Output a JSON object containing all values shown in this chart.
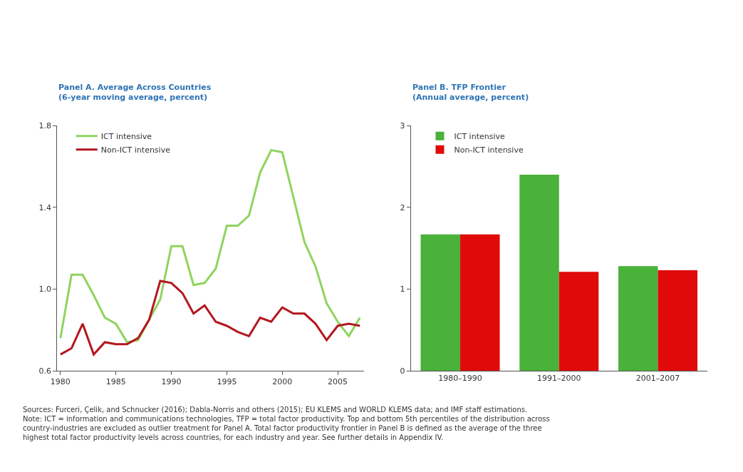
{
  "chart_data": [
    {
      "type": "line",
      "title": "Panel A. Average Across Countries",
      "subtitle": "(6-year moving average, percent)",
      "x": [
        1980,
        1981,
        1982,
        1983,
        1984,
        1985,
        1986,
        1987,
        1988,
        1989,
        1990,
        1991,
        1992,
        1993,
        1994,
        1995,
        1996,
        1997,
        1998,
        1999,
        2000,
        2001,
        2002,
        2003,
        2004,
        2005,
        2006,
        2007
      ],
      "series": [
        {
          "name": "ICT intensive",
          "color": "#8fd45e",
          "values": [
            0.76,
            1.07,
            1.07,
            0.97,
            0.86,
            0.83,
            0.74,
            0.75,
            0.85,
            0.95,
            1.21,
            1.21,
            1.02,
            1.03,
            1.1,
            1.31,
            1.31,
            1.36,
            1.57,
            1.68,
            1.67,
            1.45,
            1.23,
            1.11,
            0.93,
            0.84,
            0.77,
            0.86
          ]
        },
        {
          "name": "Non-ICT intensive",
          "color": "#b3171f",
          "values": [
            0.68,
            0.71,
            0.83,
            0.68,
            0.74,
            0.73,
            0.73,
            0.76,
            0.85,
            1.04,
            1.03,
            0.98,
            0.88,
            0.92,
            0.84,
            0.82,
            0.79,
            0.77,
            0.86,
            0.84,
            0.91,
            0.88,
            0.88,
            0.83,
            0.75,
            0.82,
            0.83,
            0.82
          ]
        }
      ],
      "xlim": [
        1979.7,
        2007.4
      ],
      "xticks": [
        1980,
        1985,
        1990,
        1995,
        2000,
        2005
      ],
      "ylim": [
        0.6,
        1.8
      ],
      "yticks": [
        0.6,
        {
          "value": 1.0,
          "label": "1.0"
        },
        1.4,
        1.8
      ],
      "legend": "top left",
      "line_style": "solid",
      "annotations": [
        "Sources: Furceri, Çelik, and Schnucker (2016); Dabla-Norris and others (2015); EU KLEMS and WORLD KLEMS data; and IMF staff estimations.",
        "Note: ICT = information and communications technologies, TFP = total factor productivity. Top and bottom 5th percentiles of the distribution across country-industries are excluded as outlier treatment for Panel A. Total factor productivity frontier in Panel B is defined as the average of the three highest total factor productivity levels across countries, for each industry and year. See further details in Appendix IV."
      ]
    },
    {
      "type": "bar",
      "title": "Panel B. TFP Frontier",
      "subtitle": "(Annual average, percent)",
      "categories": [
        "1980–1990",
        "1991–2000",
        "2001–2007"
      ],
      "series": [
        {
          "name": "ICT intensive",
          "color": "#4ab13a",
          "values": [
            1.67,
            2.4,
            1.28
          ]
        },
        {
          "name": "Non-ICT intensive",
          "color": "#e00a0a",
          "values": [
            1.67,
            1.21,
            1.23
          ]
        }
      ],
      "ylim": [
        0,
        3
      ],
      "yticks": [
        0,
        1,
        2,
        3
      ],
      "legend": "top left"
    }
  ]
}
